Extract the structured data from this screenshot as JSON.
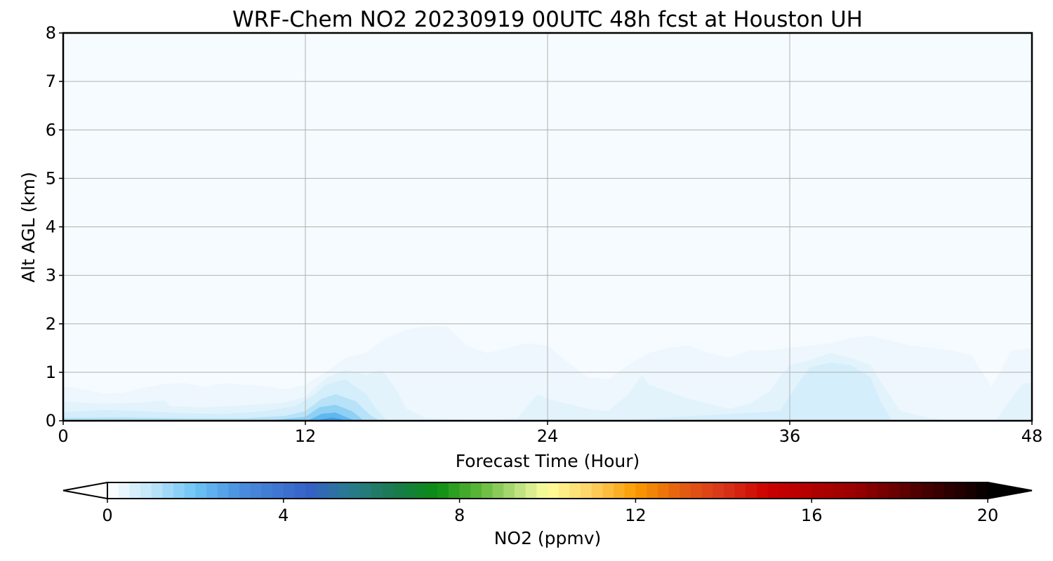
{
  "chart_data": {
    "type": "heatmap",
    "title": "WRF-Chem NO2  20230919 00UTC 48h fcst at Houston UH",
    "xlabel": "Forecast Time (Hour)",
    "ylabel": "Alt AGL (km)",
    "xlim": [
      0,
      48
    ],
    "ylim": [
      0,
      8
    ],
    "x_ticks": [
      "0",
      "12",
      "24",
      "36",
      "48"
    ],
    "y_ticks": [
      "0",
      "1",
      "2",
      "3",
      "4",
      "5",
      "6",
      "7",
      "8"
    ],
    "grid": true,
    "background_color": "#f6fbff",
    "contour_bands": [
      {
        "level_min": 0.0,
        "color": "#eef7fd",
        "top_profile": [
          [
            0,
            0.7
          ],
          [
            1,
            0.65
          ],
          [
            2,
            0.56
          ],
          [
            3,
            0.58
          ],
          [
            4,
            0.68
          ],
          [
            5,
            0.76
          ],
          [
            6,
            0.78
          ],
          [
            7,
            0.7
          ],
          [
            8,
            0.78
          ],
          [
            9,
            0.74
          ],
          [
            10,
            0.72
          ],
          [
            11,
            0.65
          ],
          [
            12,
            0.75
          ],
          [
            13,
            1.0
          ],
          [
            14,
            1.3
          ],
          [
            15,
            1.4
          ],
          [
            16,
            1.7
          ],
          [
            17,
            1.88
          ],
          [
            18,
            1.95
          ],
          [
            19,
            1.95
          ],
          [
            20,
            1.55
          ],
          [
            21,
            1.4
          ],
          [
            22,
            1.5
          ],
          [
            23,
            1.6
          ],
          [
            24,
            1.55
          ],
          [
            25,
            1.2
          ],
          [
            26,
            0.9
          ],
          [
            27,
            0.85
          ],
          [
            28,
            1.15
          ],
          [
            29,
            1.4
          ],
          [
            30,
            1.5
          ],
          [
            31,
            1.55
          ],
          [
            32,
            1.4
          ],
          [
            33,
            1.3
          ],
          [
            34,
            1.45
          ],
          [
            35,
            1.45
          ],
          [
            36,
            1.5
          ],
          [
            37,
            1.55
          ],
          [
            38,
            1.6
          ],
          [
            39,
            1.7
          ],
          [
            40,
            1.75
          ],
          [
            41,
            1.65
          ],
          [
            42,
            1.55
          ],
          [
            43,
            1.5
          ],
          [
            44,
            1.45
          ],
          [
            45,
            1.35
          ],
          [
            46,
            0.7
          ],
          [
            47,
            1.45
          ],
          [
            48,
            1.5
          ]
        ]
      },
      {
        "level_min": 0.25,
        "color": "#e3f3fc",
        "top_profile": [
          [
            0,
            0.4
          ],
          [
            2,
            0.35
          ],
          [
            4,
            0.38
          ],
          [
            5,
            0.42
          ],
          [
            5.3,
            0.3
          ],
          [
            7,
            0.28
          ],
          [
            9,
            0.32
          ],
          [
            11,
            0.38
          ],
          [
            12,
            0.5
          ],
          [
            13,
            0.88
          ],
          [
            14,
            1.05
          ],
          [
            15,
            0.95
          ],
          [
            15.8,
            1.05
          ],
          [
            16.5,
            0.65
          ],
          [
            17,
            0.25
          ],
          [
            18,
            0.05
          ],
          [
            21,
            0.01
          ],
          [
            22.5,
            0.05
          ],
          [
            23.5,
            0.55
          ],
          [
            24,
            0.45
          ],
          [
            25,
            0.35
          ],
          [
            26,
            0.25
          ],
          [
            27,
            0.2
          ],
          [
            28,
            0.55
          ],
          [
            28.7,
            0.95
          ],
          [
            29,
            0.75
          ],
          [
            30,
            0.6
          ],
          [
            31,
            0.45
          ],
          [
            32,
            0.35
          ],
          [
            33,
            0.25
          ],
          [
            34,
            0.35
          ],
          [
            35,
            0.6
          ],
          [
            35.5,
            0.9
          ],
          [
            36,
            1.15
          ],
          [
            37,
            1.25
          ],
          [
            38,
            1.4
          ],
          [
            39,
            1.3
          ],
          [
            40,
            1.15
          ],
          [
            41,
            0.5
          ],
          [
            41.5,
            0.2
          ],
          [
            43,
            0.05
          ],
          [
            44,
            0.01
          ],
          [
            46.2,
            0.01
          ],
          [
            46.7,
            0.3
          ],
          [
            47.5,
            0.75
          ],
          [
            48,
            0.8
          ]
        ]
      },
      {
        "level_min": 0.5,
        "color": "#d4eefb",
        "top_profile": [
          [
            0,
            0.18
          ],
          [
            2,
            0.22
          ],
          [
            4,
            0.2
          ],
          [
            6,
            0.15
          ],
          [
            8,
            0.14
          ],
          [
            10,
            0.2
          ],
          [
            11.5,
            0.3
          ],
          [
            12.5,
            0.55
          ],
          [
            13,
            0.75
          ],
          [
            14,
            0.85
          ],
          [
            15,
            0.55
          ],
          [
            15.5,
            0.25
          ],
          [
            16,
            0.02
          ],
          [
            24,
            0.01
          ],
          [
            25,
            0.02
          ],
          [
            28,
            0.02
          ],
          [
            35.5,
            0.2
          ],
          [
            36.3,
            0.7
          ],
          [
            37,
            1.1
          ],
          [
            38,
            1.2
          ],
          [
            39,
            1.15
          ],
          [
            40,
            0.9
          ],
          [
            40.5,
            0.4
          ],
          [
            41,
            0.05
          ]
        ]
      },
      {
        "level_min": 1.0,
        "color": "#b7e2f8",
        "top_profile": [
          [
            0,
            0.06
          ],
          [
            3,
            0.07
          ],
          [
            6,
            0.05
          ],
          [
            9,
            0.05
          ],
          [
            11,
            0.1
          ],
          [
            12,
            0.2
          ],
          [
            12.8,
            0.45
          ],
          [
            13.5,
            0.55
          ],
          [
            14.5,
            0.4
          ],
          [
            15.2,
            0.12
          ],
          [
            15.6,
            0.02
          ]
        ]
      },
      {
        "level_min": 1.5,
        "color": "#8fd0f5",
        "top_profile": [
          [
            10.5,
            0.02
          ],
          [
            12,
            0.08
          ],
          [
            12.7,
            0.28
          ],
          [
            13.5,
            0.33
          ],
          [
            14.3,
            0.2
          ],
          [
            14.8,
            0.04
          ]
        ]
      },
      {
        "level_min": 2.0,
        "color": "#5fb8ef",
        "top_profile": [
          [
            12.2,
            0.02
          ],
          [
            12.8,
            0.14
          ],
          [
            13.5,
            0.17
          ],
          [
            14.1,
            0.06
          ],
          [
            14.4,
            0.01
          ]
        ]
      },
      {
        "level_min": 2.5,
        "color": "#3fa2e8",
        "top_profile": [
          [
            12.7,
            0.02
          ],
          [
            13.3,
            0.07
          ],
          [
            13.8,
            0.03
          ]
        ]
      }
    ],
    "colorbar": {
      "label": "NO2  (ppmv)",
      "min": 0,
      "max": 20,
      "step": 0.25,
      "ticks": [
        "0",
        "4",
        "8",
        "12",
        "16",
        "20"
      ],
      "extend": "both",
      "under_color": "#ffffff",
      "over_color": "#000000",
      "color_stops": [
        [
          0,
          "#ffffff"
        ],
        [
          1,
          "#bfe6f9"
        ],
        [
          2,
          "#6cc4f5"
        ],
        [
          3,
          "#4a8fdf"
        ],
        [
          4.6,
          "#3461c6"
        ],
        [
          5.5,
          "#2a7b8e"
        ],
        [
          6.5,
          "#1a7a50"
        ],
        [
          7.5,
          "#0b8d10"
        ],
        [
          8.5,
          "#63ba3c"
        ],
        [
          9.5,
          "#cde88c"
        ],
        [
          10,
          "#ffff9a"
        ],
        [
          11,
          "#fcd163"
        ],
        [
          12,
          "#fb9b00"
        ],
        [
          13,
          "#e56010"
        ],
        [
          14,
          "#d8341a"
        ],
        [
          15,
          "#cc0000"
        ],
        [
          17,
          "#990000"
        ],
        [
          18.5,
          "#4a0000"
        ],
        [
          20,
          "#050000"
        ]
      ]
    }
  }
}
